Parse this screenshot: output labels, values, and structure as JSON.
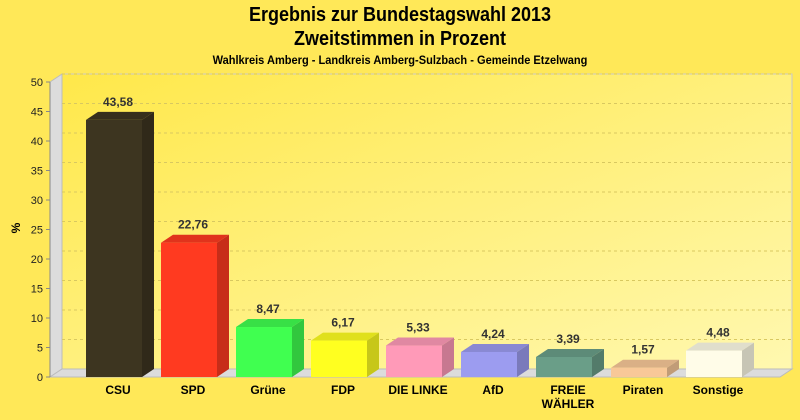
{
  "chart_data": {
    "type": "bar",
    "title": "Ergebnis zur Bundestagswahl 2013",
    "subtitle": "Zweitstimmen in Prozent",
    "subtitle2": "Wahlkreis Amberg - Landkreis Amberg-Sulzbach - Gemeinde Etzelwang",
    "xlabel": "",
    "ylabel": "%",
    "ylim": [
      0,
      50
    ],
    "yticks": [
      0,
      5,
      10,
      15,
      20,
      25,
      30,
      35,
      40,
      45,
      50
    ],
    "grid": true,
    "categories": [
      "CSU",
      "SPD",
      "Grüne",
      "FDP",
      "DIE LINKE",
      "AfD",
      "FREIE WÄHLER",
      "Piraten",
      "Sonstige"
    ],
    "category_lines": [
      [
        "CSU"
      ],
      [
        "SPD"
      ],
      [
        "Grüne"
      ],
      [
        "FDP"
      ],
      [
        "DIE LINKE"
      ],
      [
        "AfD"
      ],
      [
        "FREIE",
        "WÄHLER"
      ],
      [
        "Piraten"
      ],
      [
        "Sonstige"
      ]
    ],
    "values": [
      43.58,
      22.76,
      8.47,
      6.17,
      5.33,
      4.24,
      3.39,
      1.57,
      4.48
    ],
    "value_labels": [
      "43,58",
      "22,76",
      "8,47",
      "6,17",
      "5,33",
      "4,24",
      "3,39",
      "1,57",
      "4,48"
    ],
    "colors": [
      "#3d3520",
      "#ff3a20",
      "#40ff50",
      "#ffff20",
      "#ff9ab8",
      "#9c9cf0",
      "#6a9e88",
      "#f8c898",
      "#fffce8"
    ]
  }
}
